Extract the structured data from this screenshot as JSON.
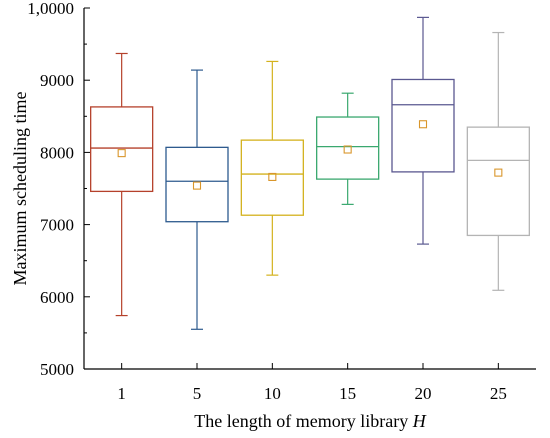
{
  "chart_data": {
    "type": "box",
    "title": "",
    "xlabel": "The length of memory library ",
    "xlabel_var": "H",
    "ylabel": "Maximum  scheduling time",
    "ylim": [
      5000,
      10000
    ],
    "yticks": [
      5000,
      6000,
      7000,
      8000,
      9000,
      10000
    ],
    "ytick_labels": [
      "5000",
      "6000",
      "7000",
      "8000",
      "9000",
      "1,0000"
    ],
    "grid": false,
    "categories": [
      "1",
      "5",
      "10",
      "15",
      "20",
      "25"
    ],
    "boxes": [
      {
        "category": "1",
        "min": 5740,
        "q1": 7460,
        "median": 8060,
        "q3": 8630,
        "max": 9370,
        "mean": 7990,
        "color": "#b5412b"
      },
      {
        "category": "5",
        "min": 5550,
        "q1": 7040,
        "median": 7600,
        "q3": 8070,
        "max": 9140,
        "mean": 7540,
        "color": "#2d5a8e"
      },
      {
        "category": "10",
        "min": 6300,
        "q1": 7130,
        "median": 7700,
        "q3": 8170,
        "max": 9260,
        "mean": 7660,
        "color": "#d4b21e"
      },
      {
        "category": "15",
        "min": 7280,
        "q1": 7630,
        "median": 8080,
        "q3": 8490,
        "max": 8820,
        "mean": 8040,
        "color": "#3aa86f"
      },
      {
        "category": "20",
        "min": 6730,
        "q1": 7730,
        "median": 8660,
        "q3": 9010,
        "max": 9870,
        "mean": 8390,
        "color": "#5a5890"
      },
      {
        "category": "25",
        "min": 6090,
        "q1": 6850,
        "median": 7890,
        "q3": 8350,
        "max": 9660,
        "mean": 7720,
        "color": "#b4b4b4"
      }
    ],
    "mean_marker_color": "#d9962b"
  }
}
